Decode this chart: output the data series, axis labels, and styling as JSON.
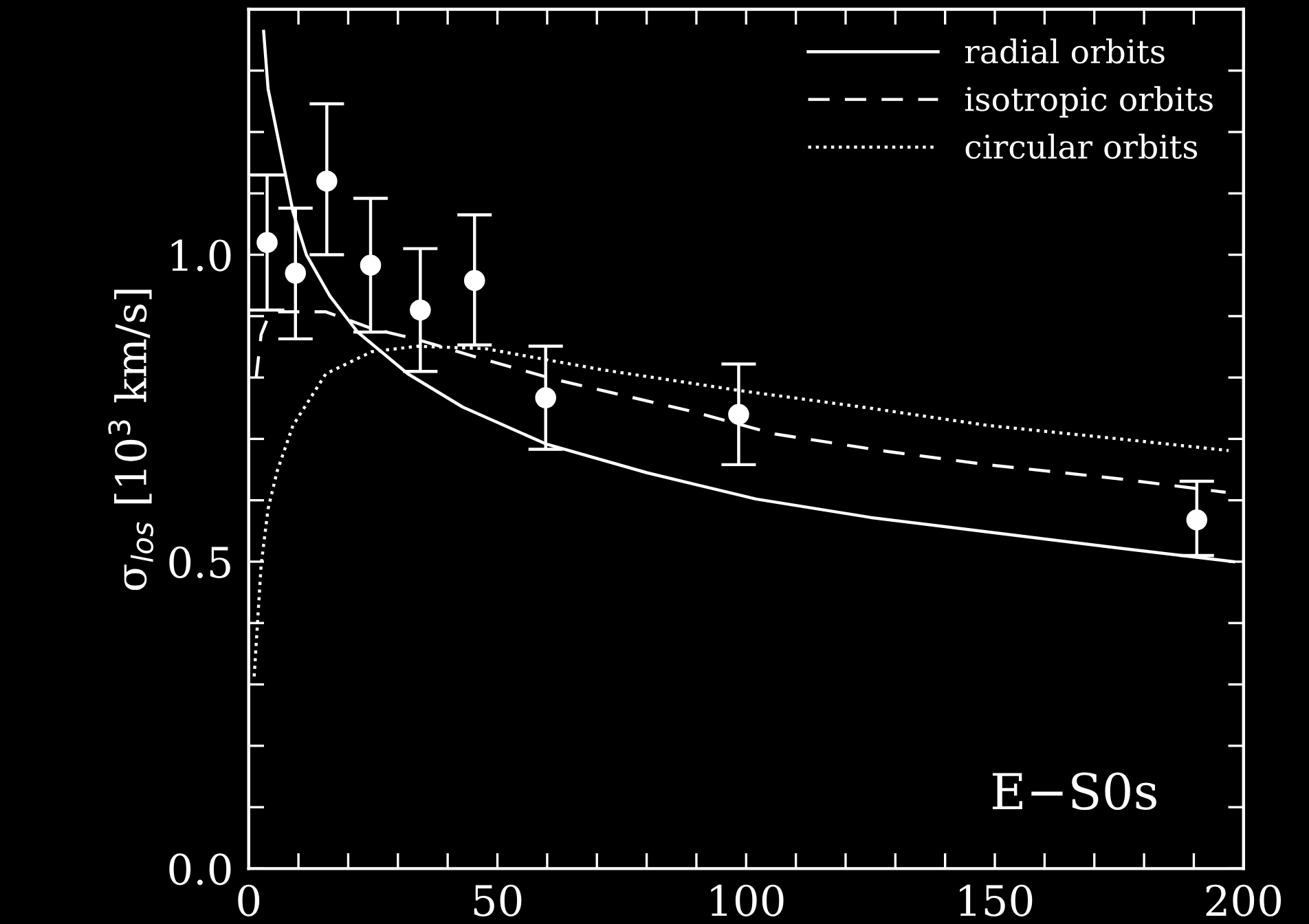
{
  "chart_data": {
    "type": "line",
    "ylabel": "σ$_{los}$ [10$^{3}$ km/s]",
    "xlim": [
      0,
      200
    ],
    "ylim": [
      0,
      1.4
    ],
    "xticks": [
      0,
      {
        "value": 10,
        "label": null
      },
      {
        "value": 20,
        "label": null
      },
      {
        "value": 30,
        "label": null
      },
      {
        "value": 40,
        "label": null
      },
      50,
      {
        "value": 60,
        "label": null
      },
      {
        "value": 70,
        "label": null
      },
      {
        "value": 80,
        "label": null
      },
      {
        "value": 90,
        "label": null
      },
      100,
      {
        "value": 110,
        "label": null
      },
      {
        "value": 120,
        "label": null
      },
      {
        "value": 130,
        "label": null
      },
      {
        "value": 140,
        "label": null
      },
      150,
      {
        "value": 160,
        "label": null
      },
      {
        "value": 170,
        "label": null
      },
      {
        "value": 180,
        "label": null
      },
      {
        "value": 190,
        "label": null
      },
      200
    ],
    "yticks": [
      {
        "value": 0,
        "label": "0.0"
      },
      {
        "value": 0.1,
        "label": null
      },
      {
        "value": 0.2,
        "label": null
      },
      {
        "value": 0.3,
        "label": null
      },
      {
        "value": 0.4,
        "label": null
      },
      0.5,
      {
        "value": 0.6,
        "label": null
      },
      {
        "value": 0.7,
        "label": null
      },
      {
        "value": 0.8,
        "label": null
      },
      {
        "value": 0.9,
        "label": null
      },
      {
        "value": 1.0,
        "label": "1.0"
      },
      {
        "value": 1.1,
        "label": null
      },
      {
        "value": 1.2,
        "label": null
      },
      {
        "value": 1.3,
        "label": null
      }
    ],
    "grid": false,
    "legend": "top right",
    "annotations": [
      "E−S0s"
    ],
    "series": [
      {
        "name": "radial orbits",
        "line_style": "solid",
        "color": "#ffffff",
        "x": [
          3.0,
          3.9,
          8.9,
          11.6,
          16.3,
          21.9,
          32,
          43,
          59.7,
          80,
          102,
          125,
          150,
          175,
          198
        ],
        "values": [
          1.364,
          1.27,
          1.07,
          1.0,
          0.933,
          0.874,
          0.806,
          0.752,
          0.692,
          0.645,
          0.602,
          0.572,
          0.547,
          0.522,
          0.5
        ]
      },
      {
        "name": "isotropic orbits",
        "line_style": "dashed",
        "color": "#ffffff",
        "x": [
          1.5,
          2.5,
          4,
          6,
          15.5,
          24.7,
          33.9,
          45,
          61.5,
          89,
          105.8,
          128,
          148.5,
          175,
          196.4
        ],
        "values": [
          0.8,
          0.87,
          0.9,
          0.907,
          0.907,
          0.88,
          0.862,
          0.835,
          0.797,
          0.745,
          0.708,
          0.68,
          0.658,
          0.635,
          0.613
        ]
      },
      {
        "name": "circular orbits",
        "line_style": "dotted",
        "color": "#ffffff",
        "x": [
          1.1,
          2.5,
          3.9,
          5.7,
          8.9,
          15.5,
          24.7,
          33.9,
          47.6,
          70.8,
          98.5,
          125,
          148.5,
          175,
          197
        ],
        "values": [
          0.313,
          0.495,
          0.586,
          0.647,
          0.722,
          0.806,
          0.842,
          0.851,
          0.847,
          0.813,
          0.779,
          0.75,
          0.722,
          0.7,
          0.681
        ]
      },
      {
        "type": "scatter",
        "marker": "circle",
        "color": "#ffffff",
        "x": [
          3.7,
          9.4,
          15.7,
          24.5,
          34.5,
          45.4,
          59.7,
          98.5,
          190.6
        ],
        "values": [
          1.02,
          0.97,
          1.12,
          0.983,
          0.91,
          0.958,
          0.767,
          0.74,
          0.568
        ],
        "errors": [
          [
            0.91,
            1.13
          ],
          [
            0.863,
            1.076
          ],
          [
            1.0,
            1.246
          ],
          [
            0.874,
            1.092
          ],
          [
            0.81,
            1.01
          ],
          [
            0.853,
            1.065
          ],
          [
            0.683,
            0.851
          ],
          [
            0.658,
            0.822
          ],
          [
            0.51,
            0.631
          ]
        ]
      }
    ]
  }
}
